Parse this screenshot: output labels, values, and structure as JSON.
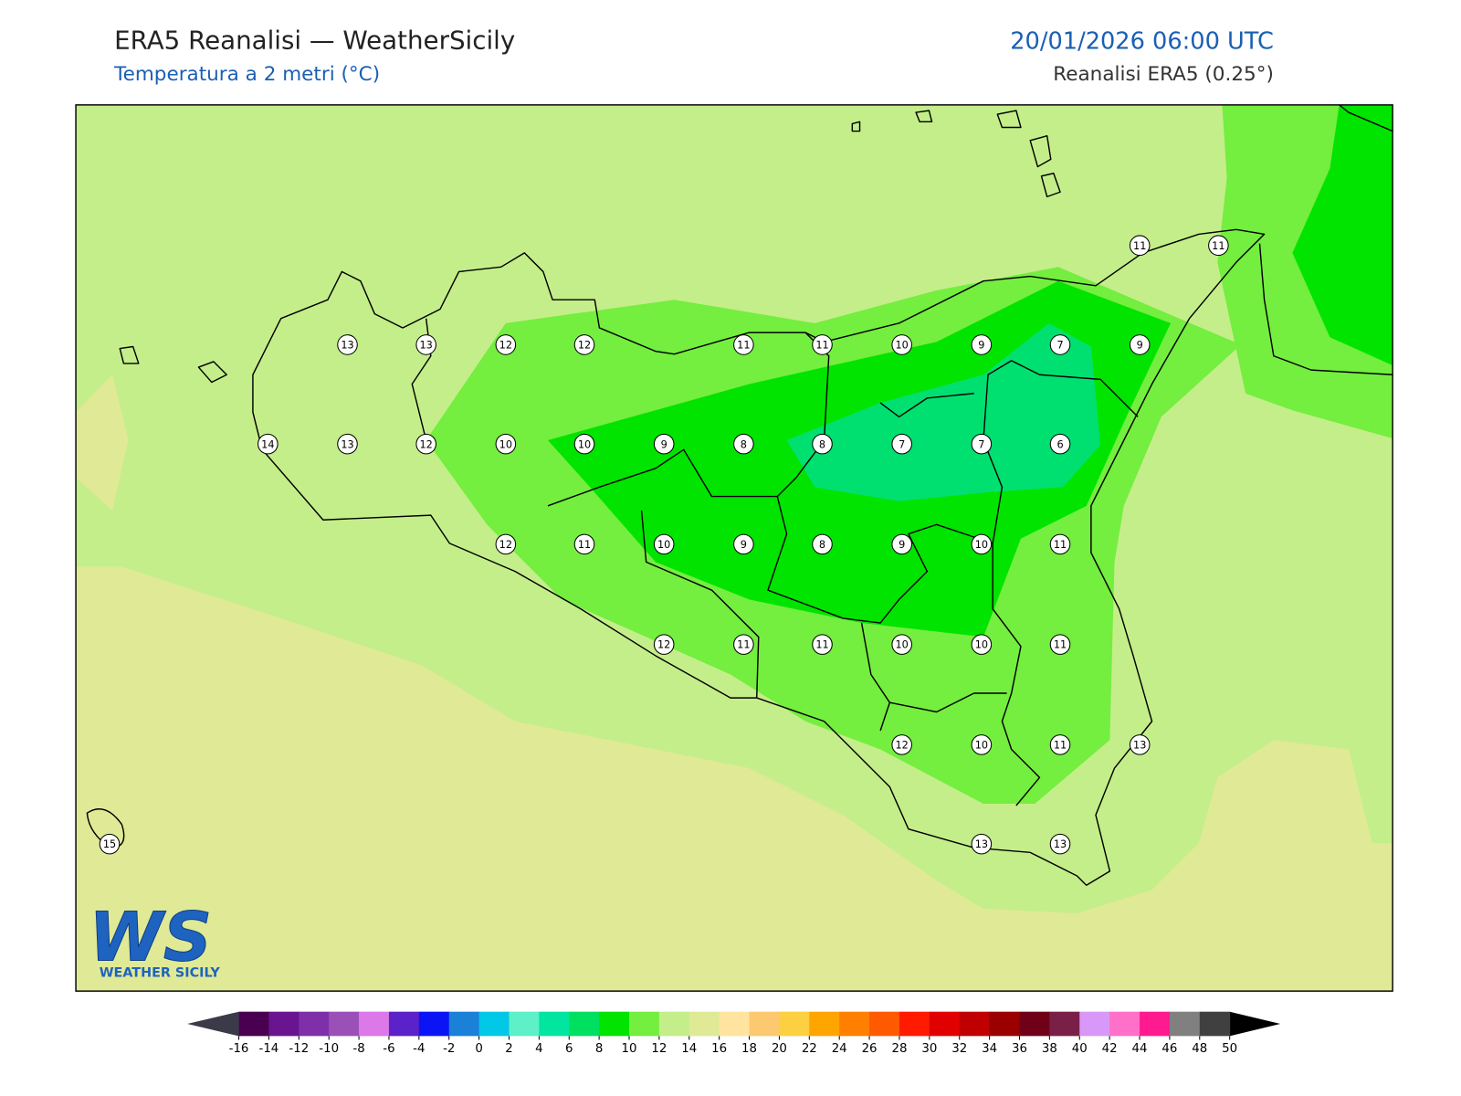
{
  "header": {
    "title": "ERA5 Reanalisi — WeatherSicily",
    "subtitle": "Temperatura a 2 metri (°C)",
    "datetime": "20/01/2026 06:00 UTC",
    "source": "Reanalisi ERA5 (0.25°)"
  },
  "stations": [
    11,
    11,
    13,
    13,
    12,
    12,
    11,
    11,
    10,
    9,
    7,
    9,
    14,
    13,
    12,
    10,
    10,
    9,
    8,
    8,
    7,
    7,
    6,
    12,
    11,
    10,
    9,
    8,
    9,
    10,
    11,
    12,
    11,
    11,
    10,
    10,
    11,
    12,
    10,
    11,
    13,
    15,
    13,
    13
  ],
  "colorbar": {
    "ticks": [
      -16,
      -14,
      -12,
      -10,
      -8,
      -6,
      -4,
      -2,
      0,
      2,
      4,
      6,
      8,
      10,
      12,
      14,
      16,
      18,
      20,
      22,
      24,
      26,
      28,
      30,
      32,
      34,
      36,
      38,
      40,
      42,
      44,
      46,
      48,
      50
    ],
    "colors": [
      "#4a0050",
      "#6a1490",
      "#7f30a8",
      "#9b50b8",
      "#dd78e8",
      "#5a22c8",
      "#0a14f5",
      "#1a80d8",
      "#00c8e6",
      "#5ef0c8",
      "#00e6a0",
      "#00e060",
      "#00e400",
      "#74ee3f",
      "#c4ee8a",
      "#e0e996",
      "#ffe4a0",
      "#fcc870",
      "#fcd040",
      "#ffa500",
      "#ff8000",
      "#ff5a00",
      "#ff1a00",
      "#e00000",
      "#c00000",
      "#9a0000",
      "#700018",
      "#7a2048",
      "#d898f8",
      "#ff70c8",
      "#ff1a90",
      "#808080",
      "#404040"
    ],
    "under_color": "#3a3a48",
    "over_color": "#000000"
  },
  "logo": {
    "mark": "WS",
    "text": "WEATHER SICILY"
  }
}
